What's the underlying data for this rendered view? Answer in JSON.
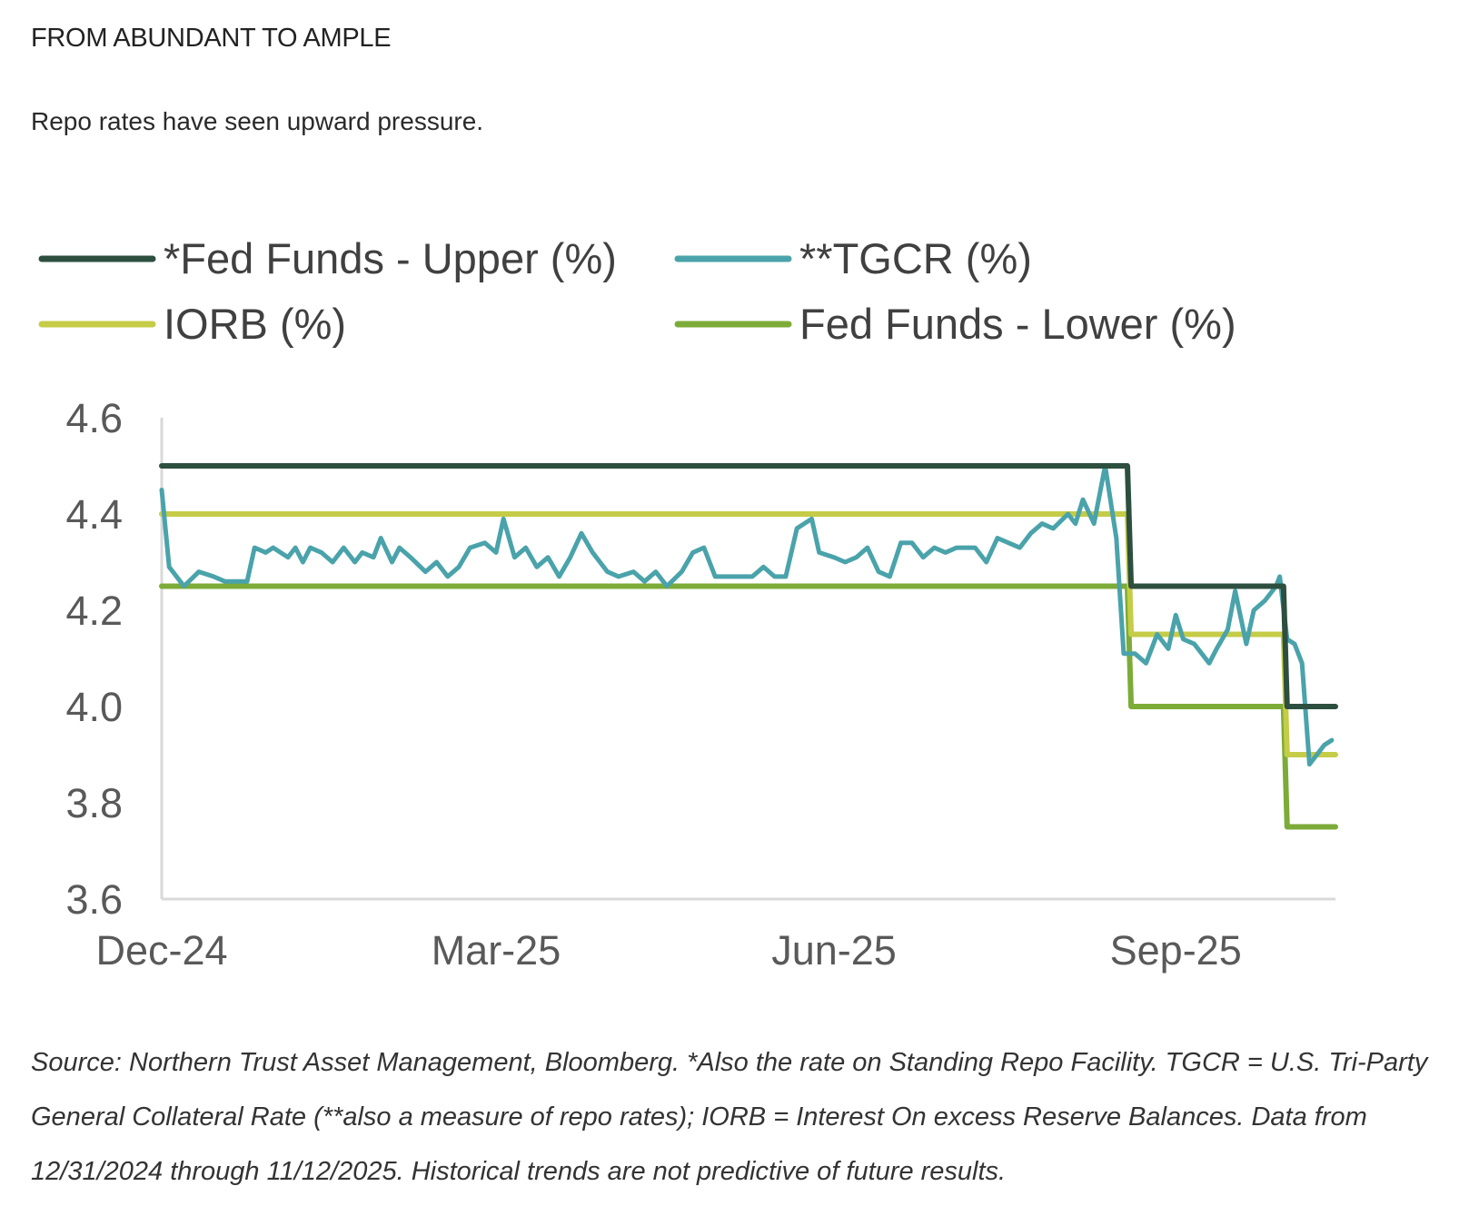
{
  "header": {
    "title": "FROM ABUNDANT TO AMPLE",
    "subtitle": "Repo rates have seen upward pressure."
  },
  "footer": {
    "source_note": "Source: Northern Trust Asset Management, Bloomberg. *Also the rate on Standing Repo Facility. TGCR = U.S. Tri-Party General Collateral Rate (**also a measure of repo rates); IORB = Interest On excess Reserve Balances. Data from 12/31/2024 through 11/12/2025. Historical trends are not predictive of future results."
  },
  "chart_data": {
    "type": "line",
    "title": "",
    "xlabel": "",
    "ylabel": "",
    "xlim": [
      "2024-12-31",
      "2025-11-12"
    ],
    "ylim": [
      3.6,
      4.6
    ],
    "y_ticks": [
      "4.6",
      "4.4",
      "4.2",
      "4.0",
      "3.8",
      "3.6"
    ],
    "x_ticks": [
      {
        "label": "Dec-24",
        "date": "2024-12-31"
      },
      {
        "label": "Mar-25",
        "date": "2025-03-31"
      },
      {
        "label": "Jun-25",
        "date": "2025-06-30"
      },
      {
        "label": "Sep-25",
        "date": "2025-09-30"
      }
    ],
    "grid": false,
    "legend_position": "top",
    "series": [
      {
        "name": "*Fed Funds - Upper (%)",
        "color": "#2d4f3f",
        "step": true,
        "points": [
          [
            "2024-12-31",
            4.5
          ],
          [
            "2025-09-17",
            4.5
          ],
          [
            "2025-09-18",
            4.25
          ],
          [
            "2025-10-29",
            4.25
          ],
          [
            "2025-10-30",
            4.0
          ],
          [
            "2025-11-12",
            4.0
          ]
        ]
      },
      {
        "name": "**TGCR (%)",
        "color": "#4aa3aa",
        "step": false,
        "points": [
          [
            "2024-12-31",
            4.45
          ],
          [
            "2025-01-02",
            4.29
          ],
          [
            "2025-01-06",
            4.25
          ],
          [
            "2025-01-10",
            4.28
          ],
          [
            "2025-01-14",
            4.27
          ],
          [
            "2025-01-17",
            4.26
          ],
          [
            "2025-01-23",
            4.26
          ],
          [
            "2025-01-25",
            4.33
          ],
          [
            "2025-01-28",
            4.32
          ],
          [
            "2025-01-30",
            4.33
          ],
          [
            "2025-02-03",
            4.31
          ],
          [
            "2025-02-05",
            4.33
          ],
          [
            "2025-02-07",
            4.3
          ],
          [
            "2025-02-09",
            4.33
          ],
          [
            "2025-02-12",
            4.32
          ],
          [
            "2025-02-15",
            4.3
          ],
          [
            "2025-02-18",
            4.33
          ],
          [
            "2025-02-21",
            4.3
          ],
          [
            "2025-02-23",
            4.32
          ],
          [
            "2025-02-26",
            4.31
          ],
          [
            "2025-02-28",
            4.35
          ],
          [
            "2025-03-03",
            4.3
          ],
          [
            "2025-03-05",
            4.33
          ],
          [
            "2025-03-08",
            4.31
          ],
          [
            "2025-03-12",
            4.28
          ],
          [
            "2025-03-15",
            4.3
          ],
          [
            "2025-03-18",
            4.27
          ],
          [
            "2025-03-21",
            4.29
          ],
          [
            "2025-03-24",
            4.33
          ],
          [
            "2025-03-28",
            4.34
          ],
          [
            "2025-03-31",
            4.32
          ],
          [
            "2025-04-02",
            4.39
          ],
          [
            "2025-04-05",
            4.31
          ],
          [
            "2025-04-08",
            4.33
          ],
          [
            "2025-04-11",
            4.29
          ],
          [
            "2025-04-14",
            4.31
          ],
          [
            "2025-04-17",
            4.27
          ],
          [
            "2025-04-20",
            4.31
          ],
          [
            "2025-04-23",
            4.36
          ],
          [
            "2025-04-26",
            4.32
          ],
          [
            "2025-04-30",
            4.28
          ],
          [
            "2025-05-03",
            4.27
          ],
          [
            "2025-05-07",
            4.28
          ],
          [
            "2025-05-10",
            4.26
          ],
          [
            "2025-05-13",
            4.28
          ],
          [
            "2025-05-16",
            4.25
          ],
          [
            "2025-05-20",
            4.28
          ],
          [
            "2025-05-23",
            4.32
          ],
          [
            "2025-05-26",
            4.33
          ],
          [
            "2025-05-29",
            4.27
          ],
          [
            "2025-06-02",
            4.27
          ],
          [
            "2025-06-05",
            4.27
          ],
          [
            "2025-06-08",
            4.27
          ],
          [
            "2025-06-11",
            4.29
          ],
          [
            "2025-06-14",
            4.27
          ],
          [
            "2025-06-17",
            4.27
          ],
          [
            "2025-06-20",
            4.37
          ],
          [
            "2025-06-24",
            4.39
          ],
          [
            "2025-06-26",
            4.32
          ],
          [
            "2025-06-30",
            4.31
          ],
          [
            "2025-07-03",
            4.3
          ],
          [
            "2025-07-06",
            4.31
          ],
          [
            "2025-07-09",
            4.33
          ],
          [
            "2025-07-12",
            4.28
          ],
          [
            "2025-07-15",
            4.27
          ],
          [
            "2025-07-18",
            4.34
          ],
          [
            "2025-07-21",
            4.34
          ],
          [
            "2025-07-24",
            4.31
          ],
          [
            "2025-07-27",
            4.33
          ],
          [
            "2025-07-30",
            4.32
          ],
          [
            "2025-08-02",
            4.33
          ],
          [
            "2025-08-05",
            4.33
          ],
          [
            "2025-08-07",
            4.33
          ],
          [
            "2025-08-10",
            4.3
          ],
          [
            "2025-08-13",
            4.35
          ],
          [
            "2025-08-16",
            4.34
          ],
          [
            "2025-08-19",
            4.33
          ],
          [
            "2025-08-22",
            4.36
          ],
          [
            "2025-08-25",
            4.38
          ],
          [
            "2025-08-28",
            4.37
          ],
          [
            "2025-09-01",
            4.4
          ],
          [
            "2025-09-03",
            4.38
          ],
          [
            "2025-09-05",
            4.43
          ],
          [
            "2025-09-08",
            4.38
          ],
          [
            "2025-09-11",
            4.5
          ],
          [
            "2025-09-14",
            4.35
          ],
          [
            "2025-09-16",
            4.11
          ],
          [
            "2025-09-19",
            4.11
          ],
          [
            "2025-09-22",
            4.09
          ],
          [
            "2025-09-25",
            4.15
          ],
          [
            "2025-09-28",
            4.12
          ],
          [
            "2025-09-30",
            4.19
          ],
          [
            "2025-10-02",
            4.14
          ],
          [
            "2025-10-05",
            4.13
          ],
          [
            "2025-10-07",
            4.11
          ],
          [
            "2025-10-09",
            4.09
          ],
          [
            "2025-10-11",
            4.12
          ],
          [
            "2025-10-14",
            4.16
          ],
          [
            "2025-10-16",
            4.24
          ],
          [
            "2025-10-19",
            4.13
          ],
          [
            "2025-10-21",
            4.2
          ],
          [
            "2025-10-24",
            4.22
          ],
          [
            "2025-10-27",
            4.25
          ],
          [
            "2025-10-28",
            4.27
          ],
          [
            "2025-10-30",
            4.14
          ],
          [
            "2025-11-01",
            4.13
          ],
          [
            "2025-11-03",
            4.09
          ],
          [
            "2025-11-05",
            3.88
          ],
          [
            "2025-11-07",
            3.9
          ],
          [
            "2025-11-09",
            3.92
          ],
          [
            "2025-11-11",
            3.93
          ]
        ]
      },
      {
        "name": "IORB (%)",
        "color": "#c5cc47",
        "step": true,
        "points": [
          [
            "2024-12-31",
            4.4
          ],
          [
            "2025-09-17",
            4.4
          ],
          [
            "2025-09-18",
            4.15
          ],
          [
            "2025-10-29",
            4.15
          ],
          [
            "2025-10-30",
            3.9
          ],
          [
            "2025-11-12",
            3.9
          ]
        ]
      },
      {
        "name": "Fed Funds - Lower (%)",
        "color": "#7cab38",
        "step": true,
        "points": [
          [
            "2024-12-31",
            4.25
          ],
          [
            "2025-09-17",
            4.25
          ],
          [
            "2025-09-18",
            4.0
          ],
          [
            "2025-10-29",
            4.0
          ],
          [
            "2025-10-30",
            3.75
          ],
          [
            "2025-11-12",
            3.75
          ]
        ]
      }
    ]
  }
}
